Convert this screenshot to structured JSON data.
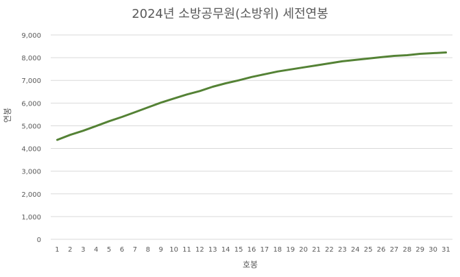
{
  "chart_data": {
    "type": "line",
    "title": "2024년 소방공무원(소방위) 세전연봉",
    "xlabel": "호봉",
    "ylabel": "연봉",
    "ylim": [
      0,
      9000
    ],
    "yticks": [
      "0",
      "1,000",
      "2,000",
      "3,000",
      "4,000",
      "5,000",
      "6,000",
      "7,000",
      "8,000",
      "9,000"
    ],
    "x": [
      "1",
      "2",
      "3",
      "4",
      "5",
      "6",
      "7",
      "8",
      "9",
      "10",
      "11",
      "12",
      "13",
      "14",
      "15",
      "16",
      "17",
      "18",
      "19",
      "20",
      "21",
      "22",
      "23",
      "24",
      "25",
      "26",
      "27",
      "28",
      "29",
      "30",
      "31"
    ],
    "series": [
      {
        "values": [
          4380,
          4600,
          4780,
          4990,
          5200,
          5390,
          5600,
          5810,
          6020,
          6200,
          6380,
          6530,
          6720,
          6870,
          7000,
          7150,
          7270,
          7390,
          7480,
          7570,
          7660,
          7750,
          7840,
          7900,
          7960,
          8020,
          8080,
          8110,
          8170,
          8200,
          8230
        ]
      }
    ],
    "grid": true,
    "legend": "none",
    "colors": {
      "line": "#548235",
      "grid": "#d9d9d9",
      "text": "#595959"
    }
  }
}
